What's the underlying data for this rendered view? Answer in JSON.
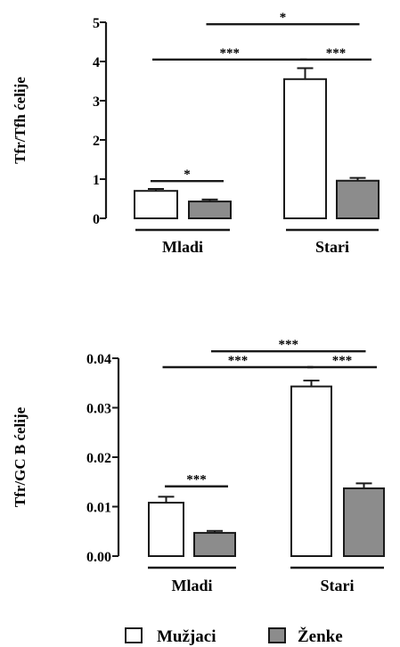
{
  "chart_data": [
    {
      "type": "bar",
      "ylabel": "Tfr/Tfh ćelije",
      "ylim": [
        0,
        5
      ],
      "yticks": [
        "0",
        "1",
        "2",
        "3",
        "4",
        "5"
      ],
      "groups": [
        "Mladi",
        "Stari"
      ],
      "series": [
        {
          "name": "Mužjaci",
          "values": [
            0.7,
            3.55
          ],
          "errors": [
            0.05,
            0.28
          ]
        },
        {
          "name": "Ženke",
          "values": [
            0.43,
            0.96
          ],
          "errors": [
            0.05,
            0.07
          ]
        }
      ],
      "significance": [
        {
          "from": "Mladi.Mužjaci",
          "to": "Mladi.Ženke",
          "label": "*",
          "y": 0.95
        },
        {
          "from": "Mladi.Mužjaci",
          "to": "Stari.Mužjaci",
          "label": "***",
          "y": 4.05
        },
        {
          "from": "Stari.Mužjaci",
          "to": "Stari.Ženke",
          "label": "***",
          "y": 4.05
        },
        {
          "from": "Mladi.Ženke",
          "to": "Stari.Ženke",
          "label": "*",
          "y": 4.95
        }
      ]
    },
    {
      "type": "bar",
      "ylabel": "Tfr/GC B ćelije",
      "ylim": [
        0,
        0.04
      ],
      "yticks": [
        "0.00",
        "0.01",
        "0.02",
        "0.03",
        "0.04"
      ],
      "groups": [
        "Mladi",
        "Stari"
      ],
      "series": [
        {
          "name": "Mužjaci",
          "values": [
            0.0108,
            0.0343
          ],
          "errors": [
            0.0012,
            0.0012
          ]
        },
        {
          "name": "Ženke",
          "values": [
            0.0047,
            0.0137
          ],
          "errors": [
            0.0004,
            0.001
          ]
        }
      ],
      "significance": [
        {
          "from": "Mladi.Mužjaci",
          "to": "Mladi.Ženke",
          "label": "***",
          "y": 0.0141
        },
        {
          "from": "Mladi.Mužjaci",
          "to": "Stari.Mužjaci",
          "label": "***",
          "y": 0.0382
        },
        {
          "from": "Stari.Mužjaci",
          "to": "Stari.Ženke",
          "label": "***",
          "y": 0.0382
        },
        {
          "from": "Mladi.Ženke",
          "to": "Stari.Ženke",
          "label": "***",
          "y": 0.0414
        }
      ]
    }
  ],
  "legend": {
    "items": [
      {
        "label": "Mužjaci",
        "color": "#ffffff"
      },
      {
        "label": "Ženke",
        "color": "#8c8c8c"
      }
    ]
  },
  "colors": {
    "ink": "#1a1a1a",
    "female_fill": "#8c8c8c",
    "male_fill": "#ffffff"
  }
}
